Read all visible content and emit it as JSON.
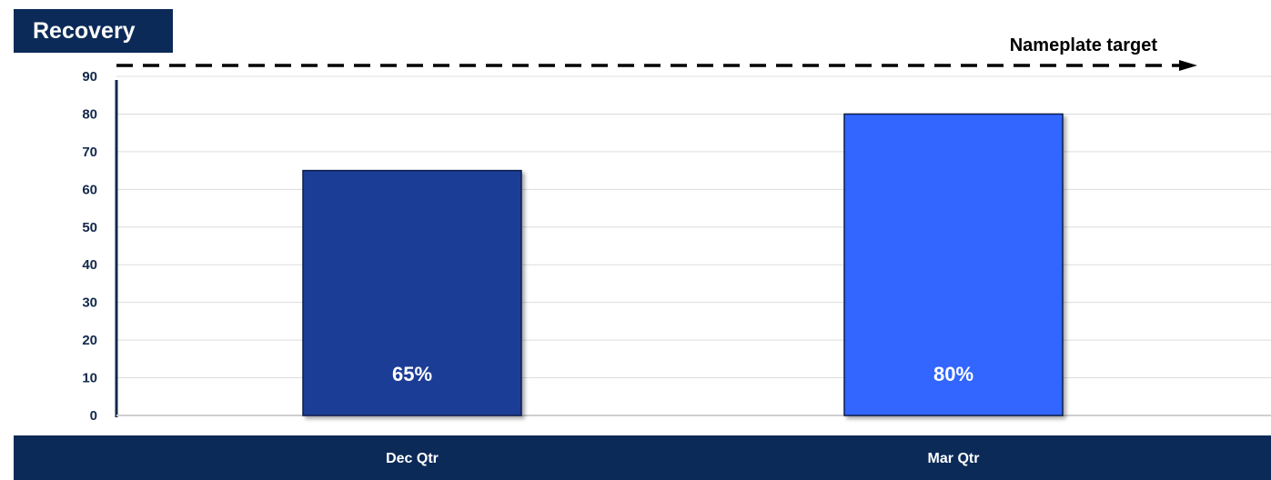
{
  "title": "Recovery",
  "chart_data": {
    "type": "bar",
    "categories": [
      "Dec Qtr",
      "Mar Qtr"
    ],
    "values": [
      65,
      80
    ],
    "data_labels": [
      "65%",
      "80%"
    ],
    "bar_colors": [
      "#1f3c96",
      "#3366ff"
    ],
    "ylim": [
      0,
      90
    ],
    "yticks": [
      "0",
      "10",
      "20",
      "30",
      "40",
      "50",
      "60",
      "70",
      "80",
      "90"
    ],
    "grid": true,
    "target": {
      "label": "Nameplate target",
      "value": 90,
      "style": "dashed arrow"
    }
  }
}
